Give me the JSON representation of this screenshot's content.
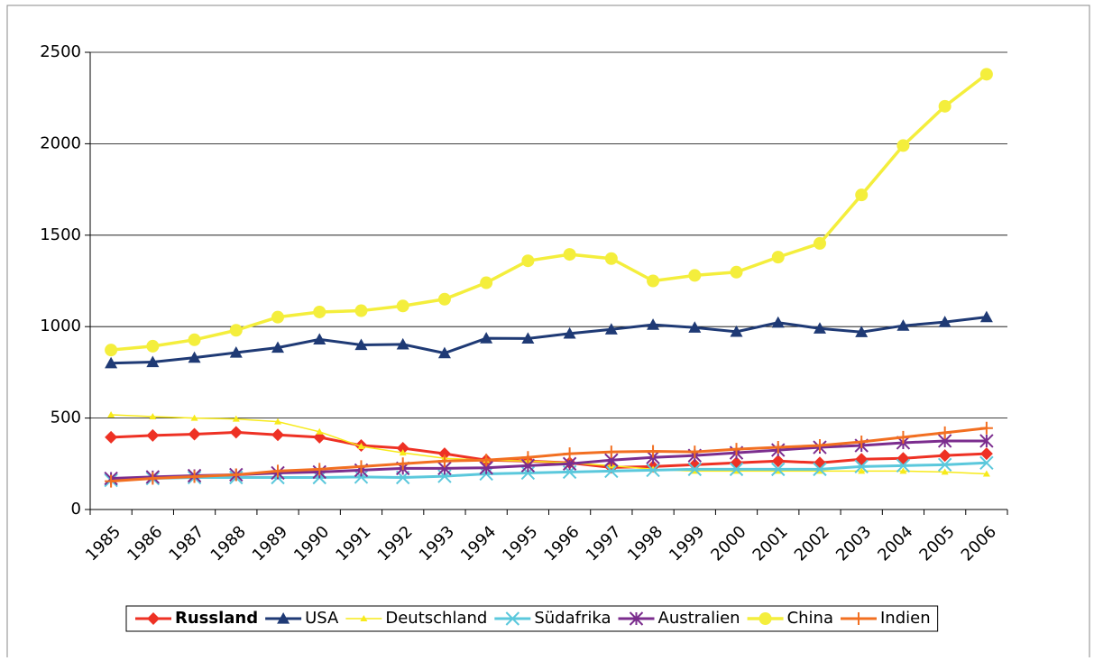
{
  "chart_data": {
    "type": "line",
    "categories": [
      "1985",
      "1986",
      "1987",
      "1988",
      "1989",
      "1990",
      "1991",
      "1992",
      "1993",
      "1994",
      "1995",
      "1996",
      "1997",
      "1998",
      "1999",
      "2000",
      "2001",
      "2002",
      "2003",
      "2004",
      "2005",
      "2006"
    ],
    "ylim": [
      0,
      2500
    ],
    "yticks": [
      0,
      500,
      1000,
      1500,
      2000,
      2500
    ],
    "grid": true,
    "legend": "bottom",
    "series": [
      {
        "name": "Russland",
        "color": "#ee3124",
        "marker": "diamond",
        "line_width": 3,
        "bold": true,
        "values": [
          395,
          405,
          412,
          422,
          408,
          395,
          350,
          335,
          305,
          270,
          265,
          255,
          230,
          235,
          245,
          255,
          265,
          255,
          275,
          280,
          295,
          305
        ]
      },
      {
        "name": "USA",
        "color": "#1f3a75",
        "marker": "triangle",
        "line_width": 3,
        "values": [
          800,
          806,
          830,
          858,
          885,
          930,
          900,
          903,
          855,
          936,
          935,
          962,
          985,
          1010,
          995,
          972,
          1022,
          990,
          970,
          1005,
          1025,
          1052
        ]
      },
      {
        "name": "Deutschland",
        "color": "#f7ea1a",
        "marker": "small-triangle",
        "line_width": 1.5,
        "values": [
          518,
          508,
          500,
          495,
          480,
          425,
          345,
          310,
          280,
          270,
          265,
          255,
          240,
          220,
          210,
          210,
          210,
          210,
          210,
          210,
          205,
          195
        ]
      },
      {
        "name": "Südafrika",
        "color": "#5bc8dc",
        "marker": "x",
        "line_width": 3,
        "values": [
          160,
          170,
          175,
          175,
          175,
          175,
          178,
          175,
          182,
          195,
          200,
          205,
          210,
          215,
          220,
          220,
          220,
          220,
          235,
          240,
          245,
          255
        ]
      },
      {
        "name": "Australien",
        "color": "#7b2d8e",
        "marker": "star",
        "line_width": 3,
        "values": [
          170,
          178,
          185,
          190,
          200,
          205,
          215,
          225,
          225,
          228,
          240,
          250,
          270,
          285,
          295,
          310,
          325,
          340,
          350,
          365,
          375,
          375
        ]
      },
      {
        "name": "China",
        "color": "#f4ee3c",
        "marker": "circle",
        "line_width": 3.5,
        "values": [
          872,
          893,
          928,
          980,
          1052,
          1080,
          1087,
          1113,
          1150,
          1240,
          1360,
          1395,
          1372,
          1250,
          1280,
          1298,
          1380,
          1455,
          1720,
          1990,
          2205,
          2380
        ]
      },
      {
        "name": "Indien",
        "color": "#f26f21",
        "marker": "plus",
        "line_width": 3,
        "values": [
          155,
          170,
          180,
          190,
          210,
          220,
          235,
          250,
          265,
          270,
          285,
          305,
          315,
          318,
          315,
          330,
          340,
          350,
          370,
          395,
          420,
          445
        ]
      }
    ]
  }
}
